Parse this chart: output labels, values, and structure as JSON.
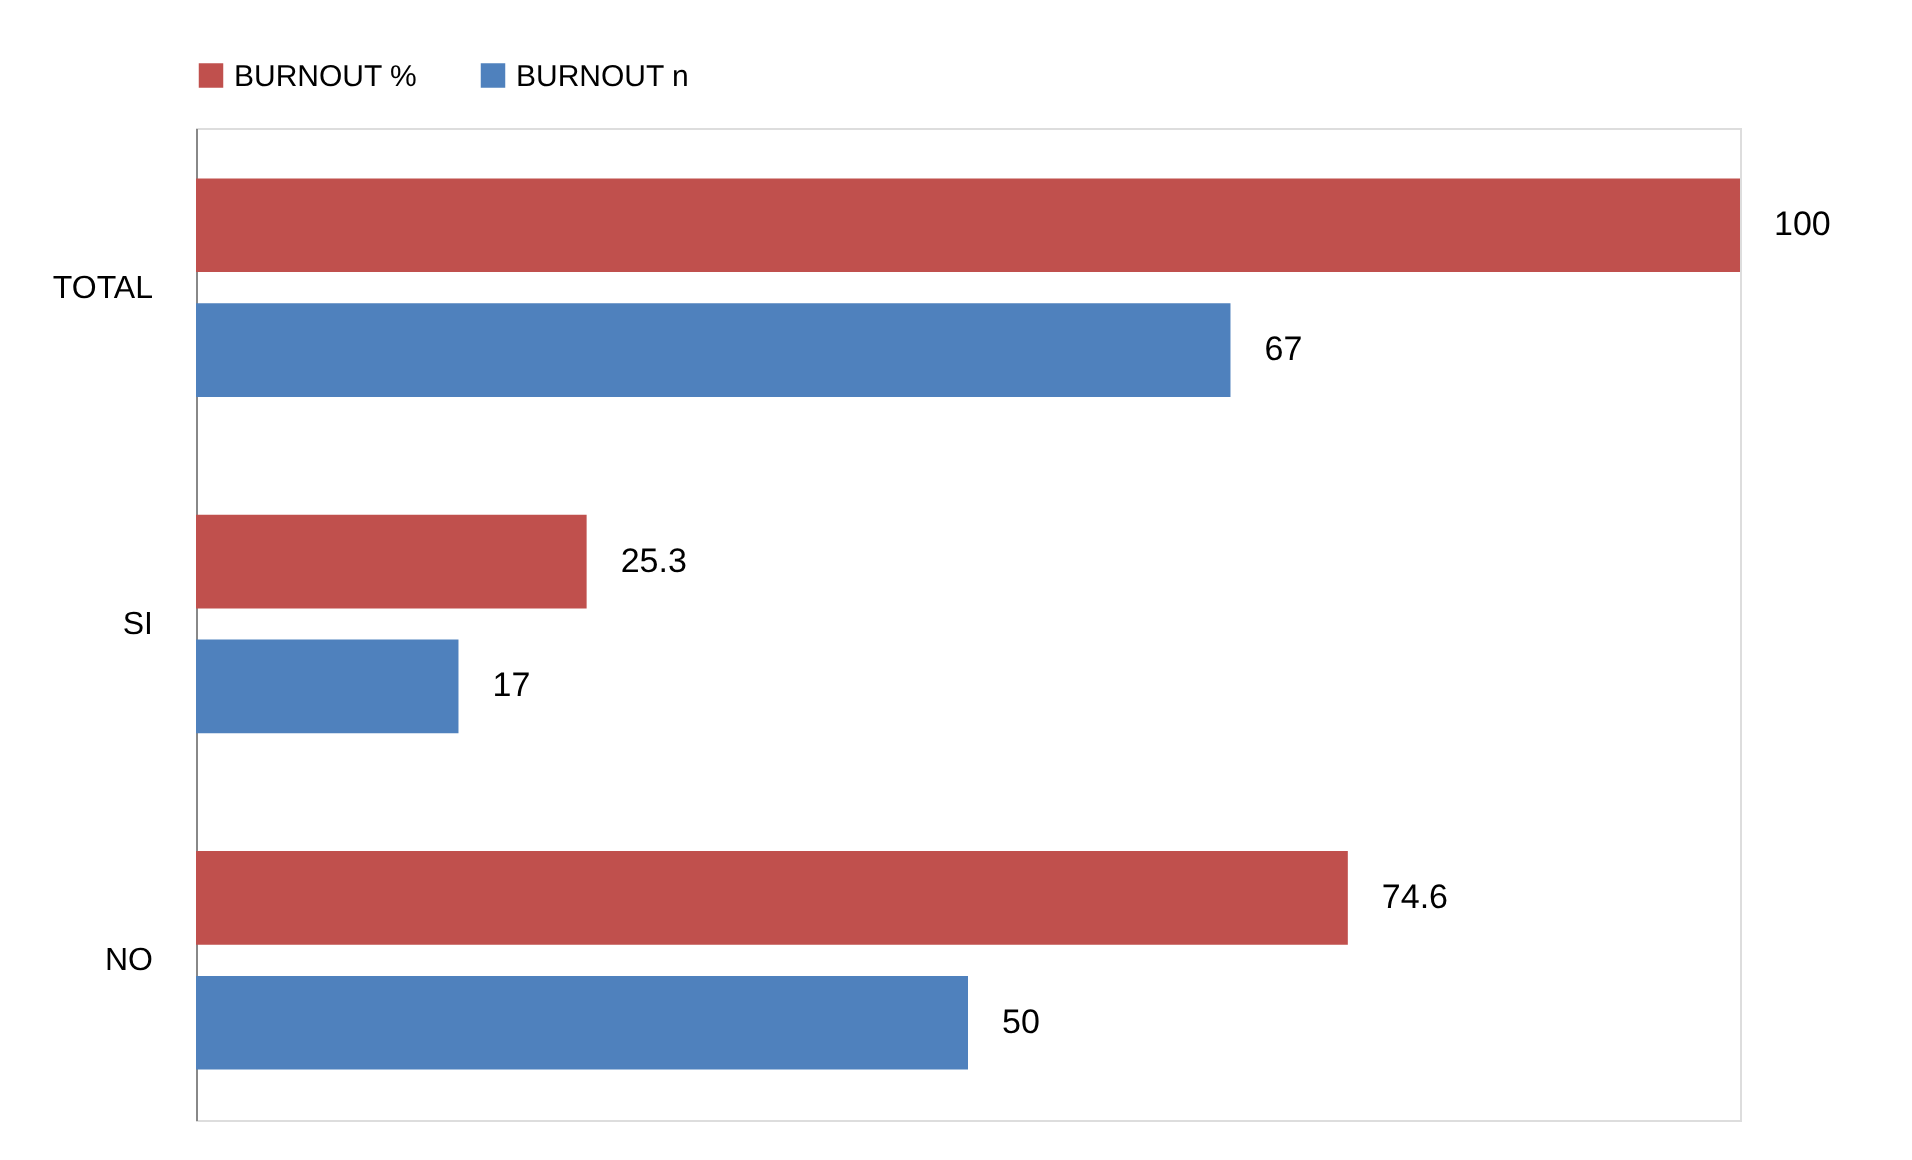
{
  "chart_data": {
    "type": "bar",
    "orientation": "horizontal",
    "categories": [
      "TOTAL",
      "SI",
      "NO"
    ],
    "series": [
      {
        "name": "BURNOUT %",
        "color": "#c0504d",
        "values": [
          100,
          25.3,
          74.6
        ]
      },
      {
        "name": "BURNOUT n",
        "color": "#4f81bd",
        "values": [
          67,
          17,
          50
        ]
      }
    ],
    "data_labels": true,
    "legend": "top",
    "tick_labels": "y"
  }
}
